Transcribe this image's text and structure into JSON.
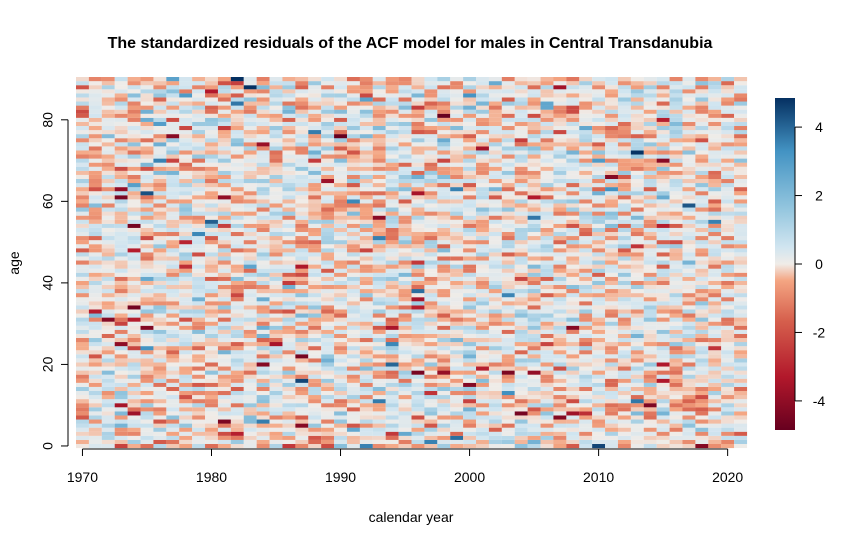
{
  "chart_data": {
    "type": "heatmap",
    "title": "The standardized residuals of the ACF model for males in Central Transdanubia",
    "xlabel": "calendar year",
    "ylabel": "age",
    "x_range": [
      1970,
      2021
    ],
    "y_range": [
      0,
      90
    ],
    "x_ticks": [
      1970,
      1980,
      1990,
      2000,
      2010,
      2020
    ],
    "y_ticks": [
      0,
      20,
      40,
      60,
      80
    ],
    "colorbar": {
      "range": [
        -4.85,
        4.85
      ],
      "ticks": [
        -4,
        -2,
        0,
        2,
        4
      ]
    },
    "colors": {
      "low": "#67001f",
      "mid_low": "#d6604d",
      "neutral_low": "#fddbc7",
      "neutral": "#f0ece8",
      "neutral_high": "#d1e5f0",
      "mid_high": "#4393c3",
      "high": "#053061"
    },
    "cell_values": "seeded pseudo-random residuals, mostly between -2 and 2 with occasional extremes"
  }
}
